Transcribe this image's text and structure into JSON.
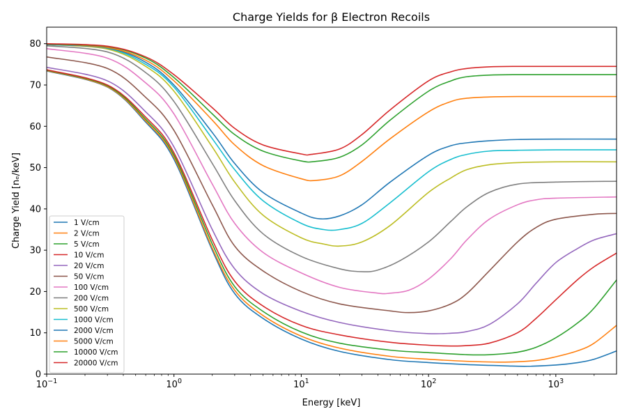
{
  "chart_data": {
    "type": "line",
    "title": "Charge Yields for β Electron Recoils",
    "xlabel": "Energy [keV]",
    "ylabel": "Charge Yield [nₑ/keV]",
    "xscale": "log",
    "xlim": [
      0.1,
      3000
    ],
    "ylim": [
      0,
      84
    ],
    "x_ticks": [
      {
        "value": 0.1,
        "base": "10",
        "exp": "−1"
      },
      {
        "value": 1,
        "base": "10",
        "exp": "0"
      },
      {
        "value": 10,
        "base": "10",
        "exp": "1"
      },
      {
        "value": 100,
        "base": "10",
        "exp": "2"
      },
      {
        "value": 1000,
        "base": "10",
        "exp": "3"
      }
    ],
    "y_ticks": [
      0,
      10,
      20,
      30,
      40,
      50,
      60,
      70,
      80
    ],
    "grid": false,
    "legend_position": "lower-left",
    "series": [
      {
        "name": "1 V/cm",
        "color": "#1f77b4",
        "points": [
          [
            0.1,
            73.4
          ],
          [
            0.3,
            69.5
          ],
          [
            0.6,
            61
          ],
          [
            1,
            52
          ],
          [
            2,
            30
          ],
          [
            3,
            19.5
          ],
          [
            5,
            13.5
          ],
          [
            10,
            8.5
          ],
          [
            20,
            5.5
          ],
          [
            50,
            3.5
          ],
          [
            100,
            2.8
          ],
          [
            200,
            2.3
          ],
          [
            400,
            2.0
          ],
          [
            600,
            1.9
          ],
          [
            1000,
            2.2
          ],
          [
            1500,
            2.8
          ],
          [
            2000,
            3.6
          ],
          [
            3000,
            5.6
          ]
        ]
      },
      {
        "name": "2 V/cm",
        "color": "#ff7f0e",
        "points": [
          [
            0.1,
            73.5
          ],
          [
            0.3,
            69.6
          ],
          [
            0.6,
            61.3
          ],
          [
            1,
            52.5
          ],
          [
            2,
            30.5
          ],
          [
            3,
            20.3
          ],
          [
            5,
            14.2
          ],
          [
            10,
            9.2
          ],
          [
            20,
            6.3
          ],
          [
            50,
            4.3
          ],
          [
            100,
            3.6
          ],
          [
            200,
            3.1
          ],
          [
            400,
            2.9
          ],
          [
            700,
            3.3
          ],
          [
            1000,
            4.2
          ],
          [
            1500,
            5.7
          ],
          [
            2000,
            7.5
          ],
          [
            3000,
            11.8
          ]
        ]
      },
      {
        "name": "5 V/cm",
        "color": "#2ca02c",
        "points": [
          [
            0.1,
            73.6
          ],
          [
            0.3,
            69.8
          ],
          [
            0.6,
            61.7
          ],
          [
            1,
            53
          ],
          [
            2,
            31.5
          ],
          [
            3,
            21.2
          ],
          [
            5,
            15.2
          ],
          [
            10,
            10.2
          ],
          [
            20,
            7.5
          ],
          [
            50,
            5.8
          ],
          [
            100,
            5.2
          ],
          [
            200,
            4.7
          ],
          [
            300,
            4.7
          ],
          [
            500,
            5.3
          ],
          [
            700,
            6.5
          ],
          [
            1000,
            8.8
          ],
          [
            1500,
            12.5
          ],
          [
            2000,
            16
          ],
          [
            3000,
            22.8
          ]
        ]
      },
      {
        "name": "10 V/cm",
        "color": "#d62728",
        "points": [
          [
            0.1,
            73.7
          ],
          [
            0.3,
            70
          ],
          [
            0.6,
            62.2
          ],
          [
            1,
            53.6
          ],
          [
            2,
            32.5
          ],
          [
            3,
            22.5
          ],
          [
            5,
            16.5
          ],
          [
            10,
            11.8
          ],
          [
            20,
            9.5
          ],
          [
            50,
            7.7
          ],
          [
            100,
            7
          ],
          [
            150,
            6.8
          ],
          [
            200,
            6.9
          ],
          [
            300,
            7.5
          ],
          [
            500,
            10
          ],
          [
            700,
            13.5
          ],
          [
            1000,
            18
          ],
          [
            1500,
            23
          ],
          [
            2000,
            26
          ],
          [
            3000,
            29.3
          ]
        ]
      },
      {
        "name": "20 V/cm",
        "color": "#9467bd",
        "points": [
          [
            0.1,
            74.3
          ],
          [
            0.3,
            71
          ],
          [
            0.6,
            63.5
          ],
          [
            1,
            55
          ],
          [
            2,
            35
          ],
          [
            3,
            25.5
          ],
          [
            5,
            19.5
          ],
          [
            10,
            15.2
          ],
          [
            20,
            12.5
          ],
          [
            50,
            10.5
          ],
          [
            100,
            9.8
          ],
          [
            150,
            9.9
          ],
          [
            200,
            10.3
          ],
          [
            300,
            12
          ],
          [
            500,
            17
          ],
          [
            700,
            22
          ],
          [
            1000,
            27
          ],
          [
            1500,
            30.5
          ],
          [
            2000,
            32.5
          ],
          [
            3000,
            34
          ]
        ]
      },
      {
        "name": "50 V/cm",
        "color": "#8c564b",
        "points": [
          [
            0.1,
            76.8
          ],
          [
            0.3,
            74
          ],
          [
            0.6,
            67
          ],
          [
            1,
            59
          ],
          [
            2,
            41
          ],
          [
            3,
            31
          ],
          [
            5,
            25
          ],
          [
            10,
            20
          ],
          [
            20,
            17
          ],
          [
            50,
            15.3
          ],
          [
            70,
            14.9
          ],
          [
            100,
            15.3
          ],
          [
            150,
            17
          ],
          [
            200,
            19.5
          ],
          [
            300,
            25
          ],
          [
            500,
            32
          ],
          [
            700,
            35.5
          ],
          [
            1000,
            37.5
          ],
          [
            2000,
            38.7
          ],
          [
            3000,
            38.9
          ]
        ]
      },
      {
        "name": "100 V/cm",
        "color": "#e377c2",
        "points": [
          [
            0.1,
            78.8
          ],
          [
            0.3,
            76.5
          ],
          [
            0.6,
            70.5
          ],
          [
            1,
            63
          ],
          [
            2,
            46
          ],
          [
            3,
            36.5
          ],
          [
            5,
            29.5
          ],
          [
            10,
            24.5
          ],
          [
            20,
            21
          ],
          [
            40,
            19.6
          ],
          [
            50,
            19.6
          ],
          [
            70,
            20.3
          ],
          [
            100,
            23
          ],
          [
            150,
            28
          ],
          [
            200,
            32.5
          ],
          [
            300,
            37.5
          ],
          [
            500,
            41
          ],
          [
            700,
            42.2
          ],
          [
            1000,
            42.6
          ],
          [
            3000,
            42.9
          ]
        ]
      },
      {
        "name": "200 V/cm",
        "color": "#7f7f7f",
        "points": [
          [
            0.1,
            79.5
          ],
          [
            0.3,
            78
          ],
          [
            0.6,
            73
          ],
          [
            1,
            66
          ],
          [
            2,
            51
          ],
          [
            3,
            42
          ],
          [
            5,
            34
          ],
          [
            10,
            28.5
          ],
          [
            20,
            25.5
          ],
          [
            30,
            24.8
          ],
          [
            40,
            25.2
          ],
          [
            60,
            27.5
          ],
          [
            100,
            32
          ],
          [
            150,
            37
          ],
          [
            200,
            40.5
          ],
          [
            300,
            44
          ],
          [
            500,
            46
          ],
          [
            1000,
            46.5
          ],
          [
            3000,
            46.7
          ]
        ]
      },
      {
        "name": "500 V/cm",
        "color": "#bcbd22",
        "points": [
          [
            0.1,
            79.8
          ],
          [
            0.3,
            78.7
          ],
          [
            0.6,
            74.5
          ],
          [
            1,
            68.5
          ],
          [
            2,
            55
          ],
          [
            3,
            46.5
          ],
          [
            5,
            38.5
          ],
          [
            10,
            33
          ],
          [
            15,
            31.5
          ],
          [
            20,
            31
          ],
          [
            30,
            32
          ],
          [
            50,
            36
          ],
          [
            100,
            44
          ],
          [
            150,
            47.5
          ],
          [
            200,
            49.5
          ],
          [
            300,
            50.7
          ],
          [
            500,
            51.2
          ],
          [
            1000,
            51.4
          ],
          [
            3000,
            51.4
          ]
        ]
      },
      {
        "name": "1000 V/cm",
        "color": "#17becf",
        "points": [
          [
            0.1,
            79.8
          ],
          [
            0.3,
            78.9
          ],
          [
            0.6,
            75
          ],
          [
            1,
            69.5
          ],
          [
            2,
            57
          ],
          [
            3,
            49.5
          ],
          [
            5,
            42
          ],
          [
            10,
            36.5
          ],
          [
            15,
            35
          ],
          [
            20,
            35
          ],
          [
            30,
            36.5
          ],
          [
            50,
            41.5
          ],
          [
            100,
            49
          ],
          [
            150,
            52
          ],
          [
            200,
            53.2
          ],
          [
            300,
            54
          ],
          [
            500,
            54.2
          ],
          [
            1000,
            54.3
          ],
          [
            3000,
            54.3
          ]
        ]
      },
      {
        "name": "2000 V/cm",
        "color": "#1f77b4",
        "points": [
          [
            0.1,
            79.8
          ],
          [
            0.3,
            79
          ],
          [
            0.6,
            75.5
          ],
          [
            1,
            70
          ],
          [
            2,
            58.5
          ],
          [
            3,
            51
          ],
          [
            5,
            44
          ],
          [
            10,
            39
          ],
          [
            14,
            37.6
          ],
          [
            20,
            38.3
          ],
          [
            30,
            41
          ],
          [
            50,
            46.5
          ],
          [
            100,
            53
          ],
          [
            150,
            55.3
          ],
          [
            200,
            56
          ],
          [
            300,
            56.5
          ],
          [
            500,
            56.8
          ],
          [
            1000,
            56.9
          ],
          [
            3000,
            56.9
          ]
        ]
      },
      {
        "name": "5000 V/cm",
        "color": "#ff7f0e",
        "points": [
          [
            0.1,
            79.9
          ],
          [
            0.3,
            79.1
          ],
          [
            0.6,
            76
          ],
          [
            1,
            71
          ],
          [
            2,
            61.5
          ],
          [
            3,
            55.5
          ],
          [
            5,
            50.5
          ],
          [
            10,
            47.3
          ],
          [
            13,
            46.9
          ],
          [
            20,
            48
          ],
          [
            30,
            51.5
          ],
          [
            50,
            57
          ],
          [
            100,
            63.5
          ],
          [
            150,
            66
          ],
          [
            200,
            66.8
          ],
          [
            300,
            67.1
          ],
          [
            500,
            67.2
          ],
          [
            1000,
            67.2
          ],
          [
            3000,
            67.2
          ]
        ]
      },
      {
        "name": "10000 V/cm",
        "color": "#2ca02c",
        "points": [
          [
            0.1,
            79.9
          ],
          [
            0.3,
            79.3
          ],
          [
            0.6,
            76.5
          ],
          [
            1,
            71.8
          ],
          [
            2,
            63
          ],
          [
            3,
            58
          ],
          [
            5,
            54
          ],
          [
            10,
            51.6
          ],
          [
            13,
            51.5
          ],
          [
            20,
            52.5
          ],
          [
            30,
            55.5
          ],
          [
            50,
            61.5
          ],
          [
            100,
            68.5
          ],
          [
            150,
            71
          ],
          [
            200,
            72
          ],
          [
            300,
            72.4
          ],
          [
            500,
            72.5
          ],
          [
            1000,
            72.5
          ],
          [
            3000,
            72.5
          ]
        ]
      },
      {
        "name": "20000 V/cm",
        "color": "#d62728",
        "points": [
          [
            0.1,
            80
          ],
          [
            0.3,
            79.4
          ],
          [
            0.6,
            76.8
          ],
          [
            1,
            72.5
          ],
          [
            2,
            64.5
          ],
          [
            3,
            59.5
          ],
          [
            5,
            55.5
          ],
          [
            10,
            53.3
          ],
          [
            12,
            53.2
          ],
          [
            20,
            54.5
          ],
          [
            30,
            58
          ],
          [
            50,
            64
          ],
          [
            100,
            71
          ],
          [
            150,
            73.2
          ],
          [
            200,
            74
          ],
          [
            300,
            74.4
          ],
          [
            500,
            74.5
          ],
          [
            1000,
            74.5
          ],
          [
            3000,
            74.5
          ]
        ]
      }
    ]
  }
}
